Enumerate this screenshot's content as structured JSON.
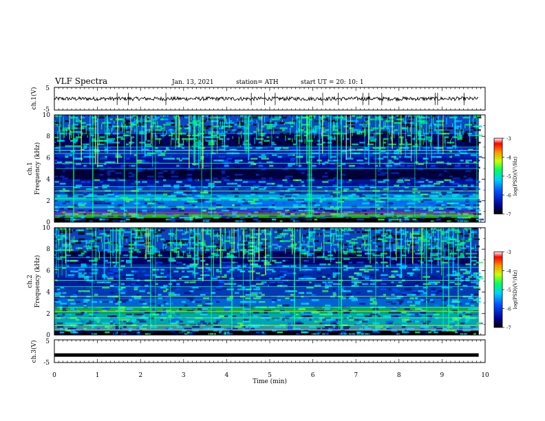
{
  "header": {
    "title": "VLF Spectra",
    "date": "Jan. 13, 2021",
    "station": "station= ATH",
    "start": "start UT =  20: 10: 1"
  },
  "chart_data": [
    {
      "type": "line",
      "name": "ch1-waveform",
      "ylabel": "ch.1(V)",
      "ylim": [
        -5,
        5
      ],
      "yticks": [
        "5",
        "-5"
      ],
      "xlim": [
        0,
        10
      ],
      "approx_level": 0,
      "approx_range": [
        -1.5,
        1.5
      ],
      "duration_min": 9.85
    },
    {
      "type": "heatmap",
      "name": "ch1-spectrogram",
      "ylabel": "Frequency (kHz)",
      "channel": "ch.1",
      "ylim": [
        0,
        10
      ],
      "yticks": [
        "0",
        "2",
        "4",
        "6",
        "8",
        "10"
      ],
      "xlim": [
        0,
        10
      ],
      "colorbar": {
        "label": "log(PSD)(V²/Hz)",
        "range": [
          -7,
          -3
        ],
        "ticks": [
          "-3",
          "-4",
          "-5",
          "-6",
          "-7"
        ]
      }
    },
    {
      "type": "heatmap",
      "name": "ch2-spectrogram",
      "ylabel": "Frequency (kHz)",
      "channel": "ch.2",
      "ylim": [
        0,
        10
      ],
      "yticks": [
        "0",
        "2",
        "4",
        "6",
        "8",
        "10"
      ],
      "xlim": [
        0,
        10
      ],
      "colorbar": {
        "label": "log(PSD)(V²/Hz)",
        "range": [
          -7,
          -3
        ],
        "ticks": [
          "-3",
          "-4",
          "-5",
          "-6",
          "-7"
        ]
      }
    },
    {
      "type": "line",
      "name": "ch3-waveform",
      "ylabel": "ch.3(V)",
      "ylim": [
        -5,
        5
      ],
      "yticks": [
        "5",
        "-5"
      ],
      "xlim": [
        0,
        10
      ],
      "approx_level": -1.7,
      "duration_min": 9.85
    }
  ],
  "xaxis": {
    "label": "Time (min)",
    "ticks": [
      "0",
      "1",
      "2",
      "3",
      "4",
      "5",
      "6",
      "7",
      "8",
      "9",
      "10"
    ]
  },
  "colors": {
    "low": "#000060",
    "mid": "#00c8ff",
    "high": "#ff0000"
  }
}
